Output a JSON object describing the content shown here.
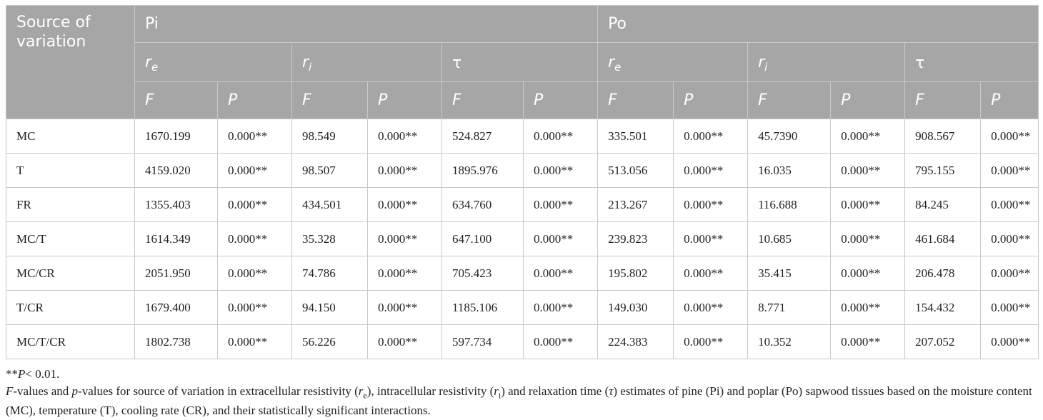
{
  "table": {
    "corner_label": "Source of variation",
    "groups": [
      "Pi",
      "Po"
    ],
    "parameters": [
      {
        "sym": "r",
        "sub": "e"
      },
      {
        "sym": "r",
        "sub": "i"
      },
      {
        "sym": "τ",
        "sub": ""
      }
    ],
    "stat_labels": [
      "F",
      "P"
    ],
    "rows": [
      {
        "source": "MC",
        "values": [
          "1670.199",
          "0.000**",
          "98.549",
          "0.000**",
          "524.827",
          "0.000**",
          "335.501",
          "0.000**",
          "45.7390",
          "0.000**",
          "908.567",
          "0.000**"
        ]
      },
      {
        "source": "T",
        "values": [
          "4159.020",
          "0.000**",
          "98.507",
          "0.000**",
          "1895.976",
          "0.000**",
          "513.056",
          "0.000**",
          "16.035",
          "0.000**",
          "795.155",
          "0.000**"
        ]
      },
      {
        "source": "FR",
        "values": [
          "1355.403",
          "0.000**",
          "434.501",
          "0.000**",
          "634.760",
          "0.000**",
          "213.267",
          "0.000**",
          "116.688",
          "0.000**",
          "84.245",
          "0.000**"
        ]
      },
      {
        "source": "MC/T",
        "values": [
          "1614.349",
          "0.000**",
          "35.328",
          "0.000**",
          "647.100",
          "0.000**",
          "239.823",
          "0.000**",
          "10.685",
          "0.000**",
          "461.684",
          "0.000**"
        ]
      },
      {
        "source": "MC/CR",
        "values": [
          "2051.950",
          "0.000**",
          "74.786",
          "0.000**",
          "705.423",
          "0.000**",
          "195.802",
          "0.000**",
          "35.415",
          "0.000**",
          "206.478",
          "0.000**"
        ]
      },
      {
        "source": "T/CR",
        "values": [
          "1679.400",
          "0.000**",
          "94.150",
          "0.000**",
          "1185.106",
          "0.000**",
          "149.030",
          "0.000**",
          "8.771",
          "0.000**",
          "154.432",
          "0.000**"
        ]
      },
      {
        "source": "MC/T/CR",
        "values": [
          "1802.738",
          "0.000**",
          "56.226",
          "0.000**",
          "597.734",
          "0.000**",
          "224.383",
          "0.000**",
          "10.352",
          "0.000**",
          "207.052",
          "0.000**"
        ]
      }
    ]
  },
  "footnotes": {
    "significance": {
      "stars": "**",
      "label": "P",
      "rest": "< 0.01."
    },
    "caption": [
      {
        "t": "F",
        "i": true
      },
      {
        "t": "-values and ",
        "i": false
      },
      {
        "t": "p",
        "i": true
      },
      {
        "t": "-values for source of variation in extracellular resistivity (",
        "i": false
      },
      {
        "t": "r",
        "i": true
      },
      {
        "t": "e",
        "sub": true
      },
      {
        "t": "), intracellular resistivity (",
        "i": false
      },
      {
        "t": "r",
        "i": true
      },
      {
        "t": "i",
        "sub": true
      },
      {
        "t": ") and relaxation time (",
        "i": false
      },
      {
        "t": "τ",
        "i": true
      },
      {
        "t": ") estimates of pine (Pi) and poplar (Po) sapwood tissues based on the moisture content (MC), temperature (T), cooling rate (CR), and their statistically significant interactions.",
        "i": false
      }
    ]
  }
}
